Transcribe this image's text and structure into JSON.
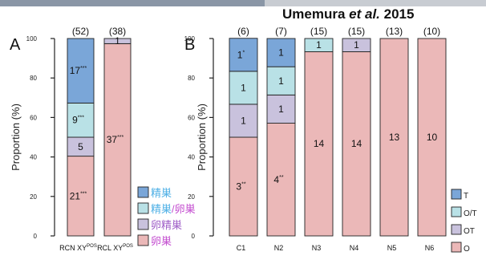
{
  "credit": {
    "name": "Umemura",
    "etal": "et al.",
    "year": "2015"
  },
  "colors": {
    "testis": "#7aa6d8",
    "ovotestis": "#b9e1e6",
    "ovotestis_b": "#c9c2dd",
    "ovary": "#ebb8b8",
    "stroke": "#222222",
    "legend_testis_text": "#4fb0e6",
    "legend_mixed_text": "#c44fd0",
    "legend_ovotestis_text": "#a060c8",
    "legend_ovary_text": "#c44fd0",
    "strip_left": "#8a96a6",
    "strip_right": "#c8ccd2"
  },
  "chart_data": [
    {
      "type": "bar",
      "panel": "A",
      "ylabel": "Proportion (%)",
      "ylim": [
        0,
        100
      ],
      "yticks": [
        "0",
        "20",
        "40",
        "60",
        "80",
        "100"
      ],
      "categories": [
        "RCN XY",
        "RCL XY"
      ],
      "category_superscripts": [
        "POS",
        "POS"
      ],
      "n_labels": [
        "(52)",
        "(38)"
      ],
      "series": [
        {
          "key": "ovary",
          "values": [
            40.4,
            97.4
          ],
          "labels": [
            "21",
            "37"
          ],
          "marks": [
            "***",
            "***"
          ]
        },
        {
          "key": "ovotestis_b",
          "values": [
            9.6,
            2.6
          ],
          "labels": [
            "5",
            "1"
          ],
          "marks": [
            "",
            ""
          ]
        },
        {
          "key": "ovotestis",
          "values": [
            17.3,
            0
          ],
          "labels": [
            "9",
            ""
          ],
          "marks": [
            "***",
            ""
          ]
        },
        {
          "key": "testis",
          "values": [
            32.7,
            0
          ],
          "labels": [
            "17",
            ""
          ],
          "marks": [
            "***",
            ""
          ]
        }
      ],
      "legend": [
        {
          "key": "testis",
          "parts": [
            {
              "text": "精巣",
              "color": "legend_testis_text"
            }
          ]
        },
        {
          "key": "ovotestis",
          "parts": [
            {
              "text": "精巣",
              "color": "legend_testis_text"
            },
            {
              "text": "/",
              "color": "legend_mixed_text"
            },
            {
              "text": "卵巣",
              "color": "legend_mixed_text"
            }
          ]
        },
        {
          "key": "ovotestis_b",
          "parts": [
            {
              "text": "卵精巣",
              "color": "legend_ovotestis_text"
            }
          ]
        },
        {
          "key": "ovary",
          "parts": [
            {
              "text": "卵巣",
              "color": "legend_ovary_text"
            }
          ]
        }
      ]
    },
    {
      "type": "bar",
      "panel": "B",
      "ylabel": "Proportion (%)",
      "ylim": [
        0,
        100
      ],
      "yticks": [
        "0",
        "20",
        "40",
        "60",
        "80",
        "100"
      ],
      "categories": [
        "C1",
        "N2",
        "N3",
        "N4",
        "N5",
        "N6"
      ],
      "n_labels": [
        "(6)",
        "(7)",
        "(15)",
        "(15)",
        "(13)",
        "(10)"
      ],
      "series": [
        {
          "key": "ovary",
          "values": [
            50,
            57.1,
            93.3,
            93.3,
            100,
            100
          ],
          "labels": [
            "3",
            "4",
            "14",
            "14",
            "13",
            "10"
          ],
          "marks": [
            "**",
            "**",
            "",
            "",
            "",
            ""
          ]
        },
        {
          "key": "ovotestis_b",
          "values": [
            16.7,
            14.3,
            0,
            6.7,
            0,
            0
          ],
          "labels": [
            "1",
            "1",
            "",
            "1",
            "",
            ""
          ],
          "marks": [
            "",
            "",
            "",
            "",
            "",
            ""
          ]
        },
        {
          "key": "ovotestis",
          "values": [
            16.7,
            14.3,
            6.7,
            0,
            0,
            0
          ],
          "labels": [
            "1",
            "1",
            "1",
            "",
            "",
            ""
          ],
          "marks": [
            "",
            "",
            "",
            "",
            "",
            ""
          ]
        },
        {
          "key": "testis",
          "values": [
            16.7,
            14.3,
            0,
            0,
            0,
            0
          ],
          "labels": [
            "1",
            "1",
            "",
            "",
            "",
            ""
          ],
          "marks": [
            "*",
            "",
            "",
            "",
            "",
            ""
          ]
        }
      ],
      "legend": [
        {
          "key": "testis",
          "parts": [
            {
              "text": "T",
              "color": "stroke"
            }
          ]
        },
        {
          "key": "ovotestis",
          "parts": [
            {
              "text": "O/T",
              "color": "stroke"
            }
          ]
        },
        {
          "key": "ovotestis_b",
          "parts": [
            {
              "text": "OT",
              "color": "stroke"
            }
          ]
        },
        {
          "key": "ovary",
          "parts": [
            {
              "text": "O",
              "color": "stroke"
            }
          ]
        }
      ]
    }
  ],
  "panel_letters": [
    "A",
    "B"
  ]
}
